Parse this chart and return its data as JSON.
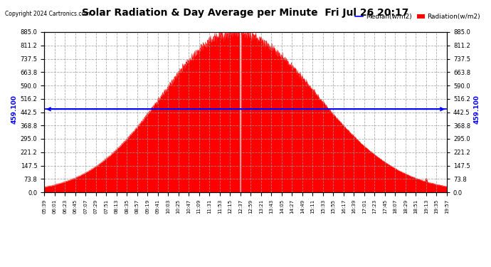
{
  "title": "Solar Radiation & Day Average per Minute  Fri Jul 26 20:17",
  "copyright": "Copyright 2024 Cartronics.com",
  "legend_median": "Median(w/m2)",
  "legend_radiation": "Radiation(w/m2)",
  "median_value": 459.1,
  "median_label": "459.100",
  "ymin": 0.0,
  "ymax": 885.0,
  "yticks": [
    0.0,
    73.8,
    147.5,
    221.2,
    295.0,
    368.8,
    442.5,
    516.2,
    590.0,
    663.8,
    737.5,
    811.2,
    885.0
  ],
  "ytick_labels": [
    "0.0",
    "73.8",
    "147.5",
    "221.2",
    "295.0",
    "368.8",
    "442.5",
    "516.2",
    "590.0",
    "663.8",
    "737.5",
    "811.2",
    "885.0"
  ],
  "bg_color": "#ffffff",
  "fill_color": "#ff0000",
  "median_line_color": "#0000ff",
  "grid_color": "#999999",
  "title_color": "#000000",
  "copyright_color": "#000000",
  "legend_median_color": "#0000ff",
  "legend_radiation_color": "#ff0000",
  "xstart_minutes": 339,
  "xend_minutes": 1197,
  "solar_noon_minutes": 745,
  "current_time_minutes": 757,
  "peak_value": 885.0,
  "num_points": 1716,
  "xtick_labels": [
    "05:39",
    "06:01",
    "06:23",
    "06:45",
    "07:07",
    "07:29",
    "07:51",
    "08:13",
    "08:35",
    "08:57",
    "09:19",
    "09:41",
    "10:03",
    "10:25",
    "10:47",
    "11:09",
    "11:31",
    "11:53",
    "12:15",
    "12:37",
    "12:59",
    "13:21",
    "13:43",
    "14:05",
    "14:27",
    "14:49",
    "15:11",
    "15:33",
    "15:55",
    "16:17",
    "16:39",
    "17:01",
    "17:23",
    "17:45",
    "18:07",
    "18:29",
    "18:51",
    "19:13",
    "19:35",
    "19:57"
  ]
}
